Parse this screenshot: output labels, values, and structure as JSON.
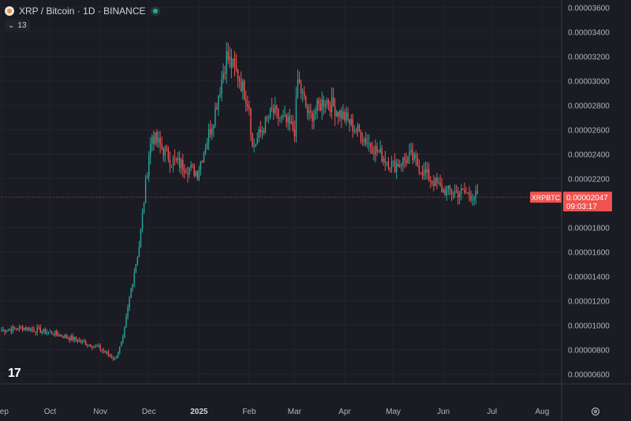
{
  "header": {
    "symbol_title": "XRP / Bitcoin · 1D · BINANCE",
    "indicator_count": "13"
  },
  "price_label": {
    "ticker": "XRPBTC",
    "price": "0.00002047",
    "countdown": "09:03:17"
  },
  "colors": {
    "background": "#1a1b23",
    "up": "#26a69a",
    "down": "#ef5350",
    "grid": "#23252e",
    "axis_text": "#b2b5be",
    "price_line": "#ef5350"
  },
  "chart_data": {
    "type": "candlestick",
    "title": "",
    "xlabel": "",
    "ylabel": "",
    "ylim": [
      5.2e-06,
      3.66e-05
    ],
    "y_ticks": [
      "0.00003600",
      "0.00003400",
      "0.00003200",
      "0.00003000",
      "0.00002800",
      "0.00002600",
      "0.00002400",
      "0.00002200",
      "0.00001800",
      "0.00001600",
      "0.00001400",
      "0.00001200",
      "0.00001000",
      "0.00000800",
      "0.00000600"
    ],
    "x_ticks": [
      "Sep",
      "Oct",
      "Nov",
      "Dec",
      "2025",
      "Feb",
      "Mar",
      "Apr",
      "May",
      "Jun",
      "Jul",
      "Aug"
    ],
    "x_tick_dates": [
      "2024-09-01",
      "2024-10-01",
      "2024-11-01",
      "2024-12-01",
      "2025-01-01",
      "2025-02-01",
      "2025-03-01",
      "2025-04-01",
      "2025-05-01",
      "2025-06-01",
      "2025-07-01",
      "2025-08-01"
    ],
    "x_range": [
      "2024-09-01",
      "2025-08-13"
    ],
    "last_price": 2.047e-05,
    "series": [
      {
        "dates": [
          "2024-09-01",
          "2024-09-15",
          "2024-10-01",
          "2024-10-15",
          "2024-11-01",
          "2024-11-10",
          "2024-11-15",
          "2024-11-20",
          "2024-11-25",
          "2024-12-01",
          "2024-12-03",
          "2024-12-15",
          "2024-12-31",
          "2025-01-10",
          "2025-01-18",
          "2025-01-25",
          "2025-02-01",
          "2025-02-03",
          "2025-02-15",
          "2025-03-01",
          "2025-03-03",
          "2025-03-10",
          "2025-03-20",
          "2025-04-01",
          "2025-04-15",
          "2025-05-01",
          "2025-05-12",
          "2025-05-20",
          "2025-06-01",
          "2025-06-15",
          "2025-06-22"
        ],
        "values": [
          9.6e-06,
          9.8e-06,
          9.4e-06,
          8.9e-06,
          8.1e-06,
          7.2e-06,
          8.8e-06,
          1.3e-05,
          1.65e-05,
          2.4e-05,
          2.55e-05,
          2.35e-05,
          2.25e-05,
          2.7e-05,
          3.2e-05,
          3.05e-05,
          2.8e-05,
          2.45e-05,
          2.75e-05,
          2.6e-05,
          3e-05,
          2.7e-05,
          2.85e-05,
          2.7e-05,
          2.5e-05,
          2.3e-05,
          2.38e-05,
          2.25e-05,
          2.1e-05,
          2.08e-05,
          2.05e-05
        ]
      }
    ]
  }
}
